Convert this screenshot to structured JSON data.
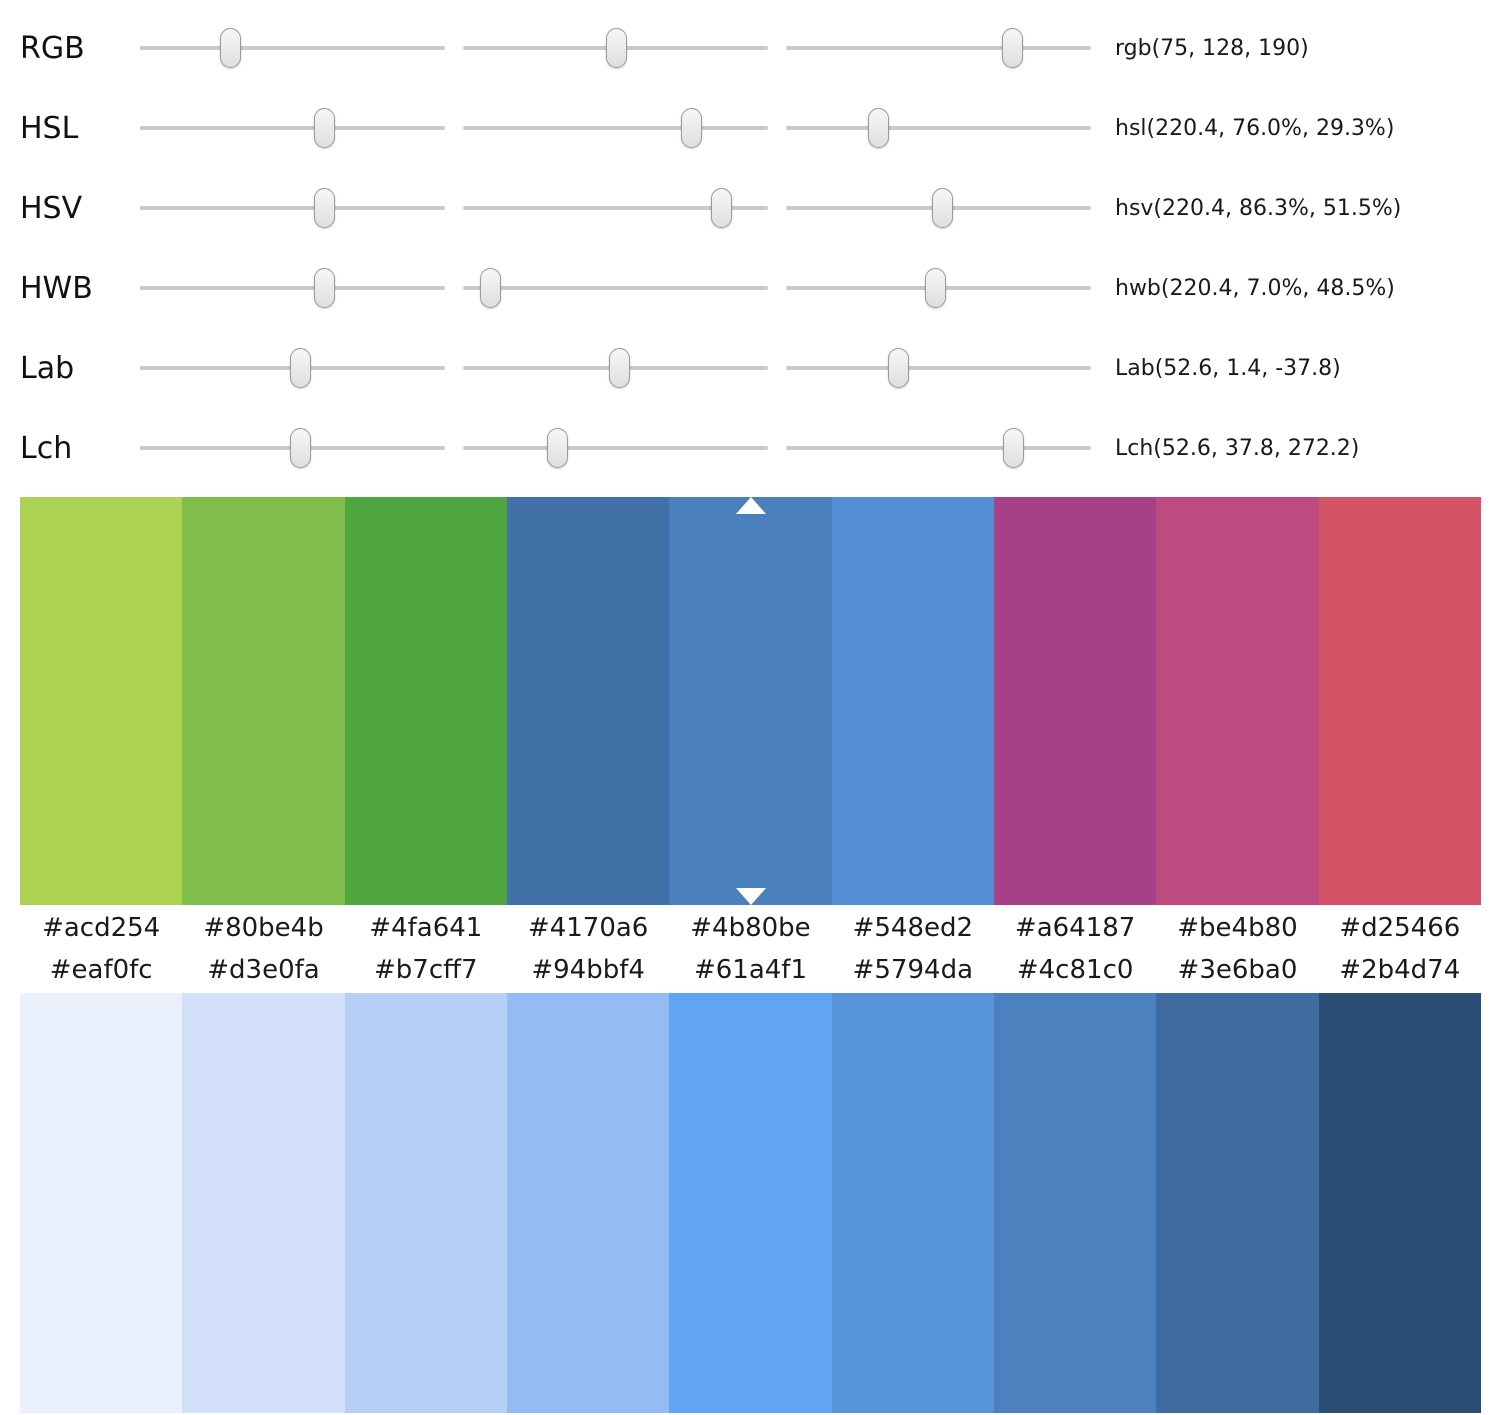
{
  "sliders": {
    "rows": [
      {
        "id": "rgb",
        "label": "RGB",
        "value": "rgb(75, 128, 190)",
        "thumbs": [
          0.295,
          0.502,
          0.74
        ]
      },
      {
        "id": "hsl",
        "label": "HSL",
        "value": "hsl(220.4, 76.0%, 29.3%)",
        "thumbs": [
          0.602,
          0.748,
          0.3
        ]
      },
      {
        "id": "hsv",
        "label": "HSV",
        "value": "hsv(220.4, 86.3%, 51.5%)",
        "thumbs": [
          0.602,
          0.845,
          0.51
        ]
      },
      {
        "id": "hwb",
        "label": "HWB",
        "value": "hwb(220.4, 7.0%, 48.5%)",
        "thumbs": [
          0.602,
          0.088,
          0.487
        ]
      },
      {
        "id": "lab",
        "label": "Lab",
        "value": "Lab(52.6, 1.4, -37.8)",
        "thumbs": [
          0.524,
          0.512,
          0.368
        ]
      },
      {
        "id": "lch",
        "label": "Lch",
        "value": "Lch(52.6, 37.8, 272.2)",
        "thumbs": [
          0.524,
          0.308,
          0.744
        ]
      }
    ]
  },
  "hue_palette": {
    "selected_index": 4,
    "marker_color": "#ffffff",
    "swatches": [
      "#acd254",
      "#80be4b",
      "#4fa641",
      "#4170a6",
      "#4b80be",
      "#548ed2",
      "#a64187",
      "#be4b80",
      "#d25466"
    ]
  },
  "shade_palette": {
    "swatches": [
      "#eaf0fc",
      "#d3e0fa",
      "#b7cff7",
      "#94bbf4",
      "#61a4f1",
      "#5794da",
      "#4c81c0",
      "#3e6ba0",
      "#2b4d74"
    ]
  }
}
